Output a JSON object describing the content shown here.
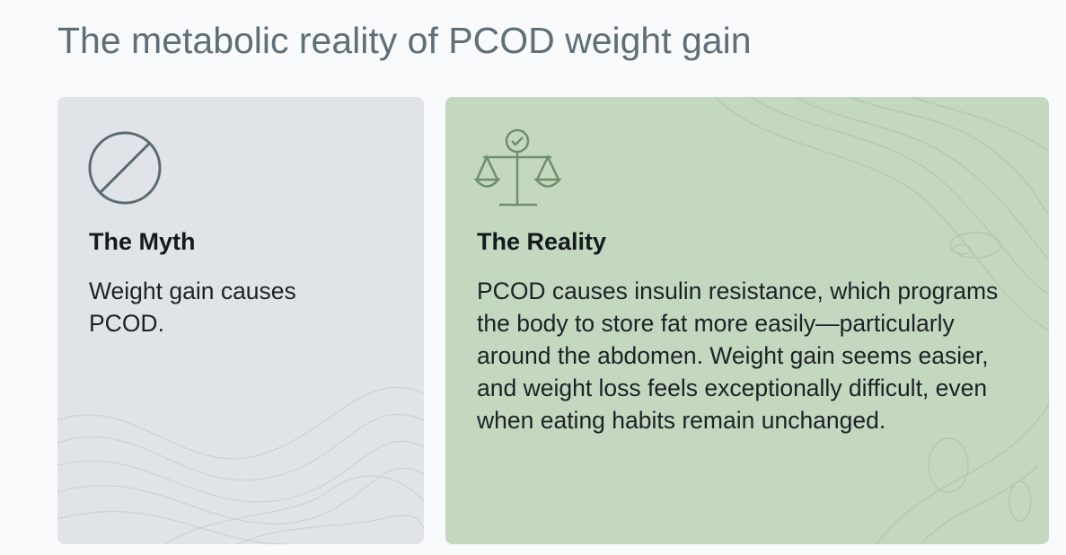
{
  "header": {
    "title": "The metabolic reality of PCOD weight gain"
  },
  "cards": [
    {
      "heading": "The Myth",
      "body": "Weight gain causes PCOD."
    },
    {
      "heading": "The Reality",
      "body": "PCOD causes insulin resistance, which programs the body to store fat more easily—particularly around the abdomen. Weight gain seems easier, and weight loss feels exceptionally difficult, even when eating habits remain unchanged."
    }
  ]
}
